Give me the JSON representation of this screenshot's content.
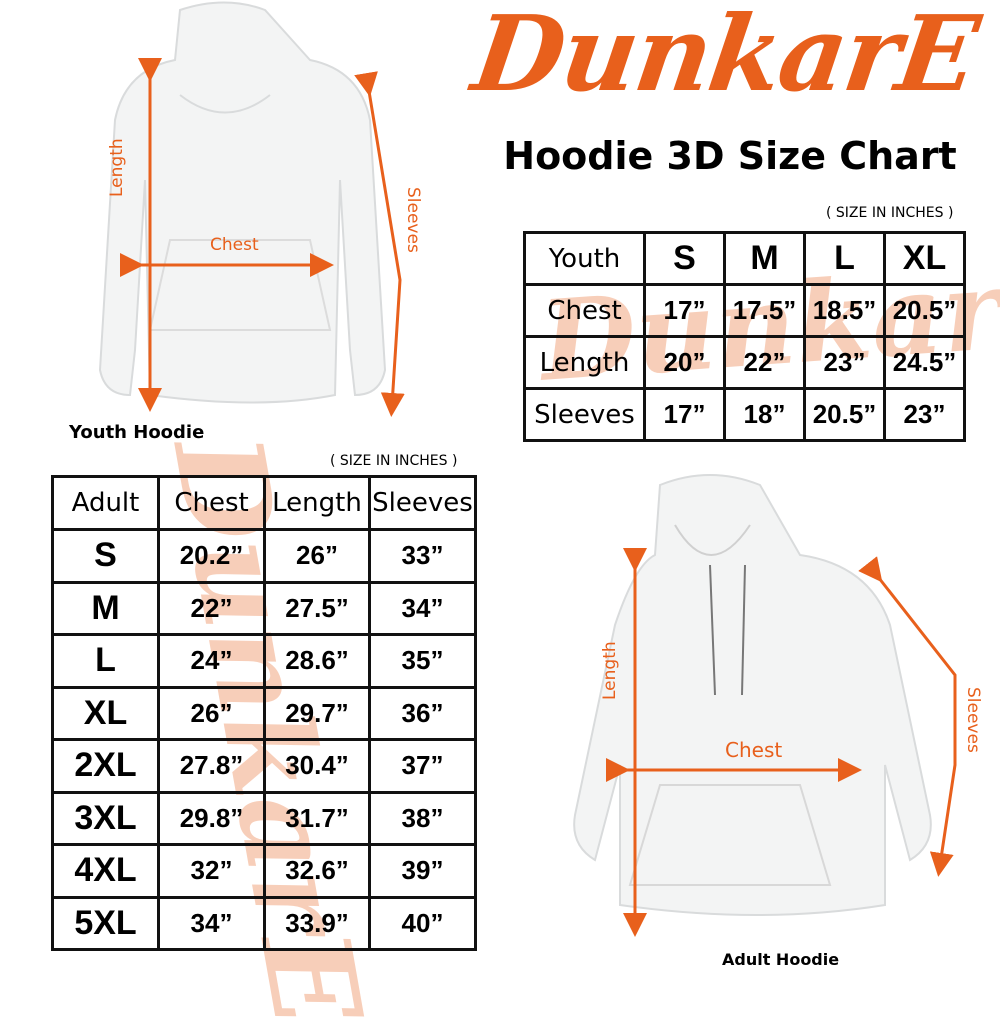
{
  "brand": {
    "logo_text": "DunkarE",
    "color": "#e8601c"
  },
  "title": "Hoodie 3D Size Chart",
  "youth": {
    "caption": "Youth Hoodie",
    "unit_note": "( SIZE IN INCHES )",
    "arrow_labels": {
      "length": "Length",
      "chest": "Chest",
      "sleeves": "Sleeves"
    },
    "table": {
      "corner": "Youth",
      "columns": [
        "S",
        "M",
        "L",
        "XL"
      ],
      "rows": [
        {
          "label": "Chest",
          "values": [
            "17”",
            "17.5”",
            "18.5”",
            "20.5”"
          ]
        },
        {
          "label": "Length",
          "values": [
            "20”",
            "22”",
            "23”",
            "24.5”"
          ]
        },
        {
          "label": "Sleeves",
          "values": [
            "17”",
            "18”",
            "20.5”",
            "23”"
          ]
        }
      ]
    }
  },
  "adult": {
    "caption": "Adult Hoodie",
    "unit_note": "( SIZE IN INCHES )",
    "arrow_labels": {
      "length": "Length",
      "chest": "Chest",
      "sleeves": "Sleeves"
    },
    "table": {
      "columns": [
        "Adult",
        "Chest",
        "Length",
        "Sleeves"
      ],
      "rows": [
        [
          "S",
          "20.2”",
          "26”",
          "33”"
        ],
        [
          "M",
          "22”",
          "27.5”",
          "34”"
        ],
        [
          "L",
          "24”",
          "28.6”",
          "35”"
        ],
        [
          "XL",
          "26”",
          "29.7”",
          "36”"
        ],
        [
          "2XL",
          "27.8”",
          "30.4”",
          "37”"
        ],
        [
          "3XL",
          "29.8”",
          "31.7”",
          "38”"
        ],
        [
          "4XL",
          "32”",
          "32.6”",
          "39”"
        ],
        [
          "5XL",
          "34”",
          "33.9”",
          "40”"
        ]
      ]
    }
  }
}
